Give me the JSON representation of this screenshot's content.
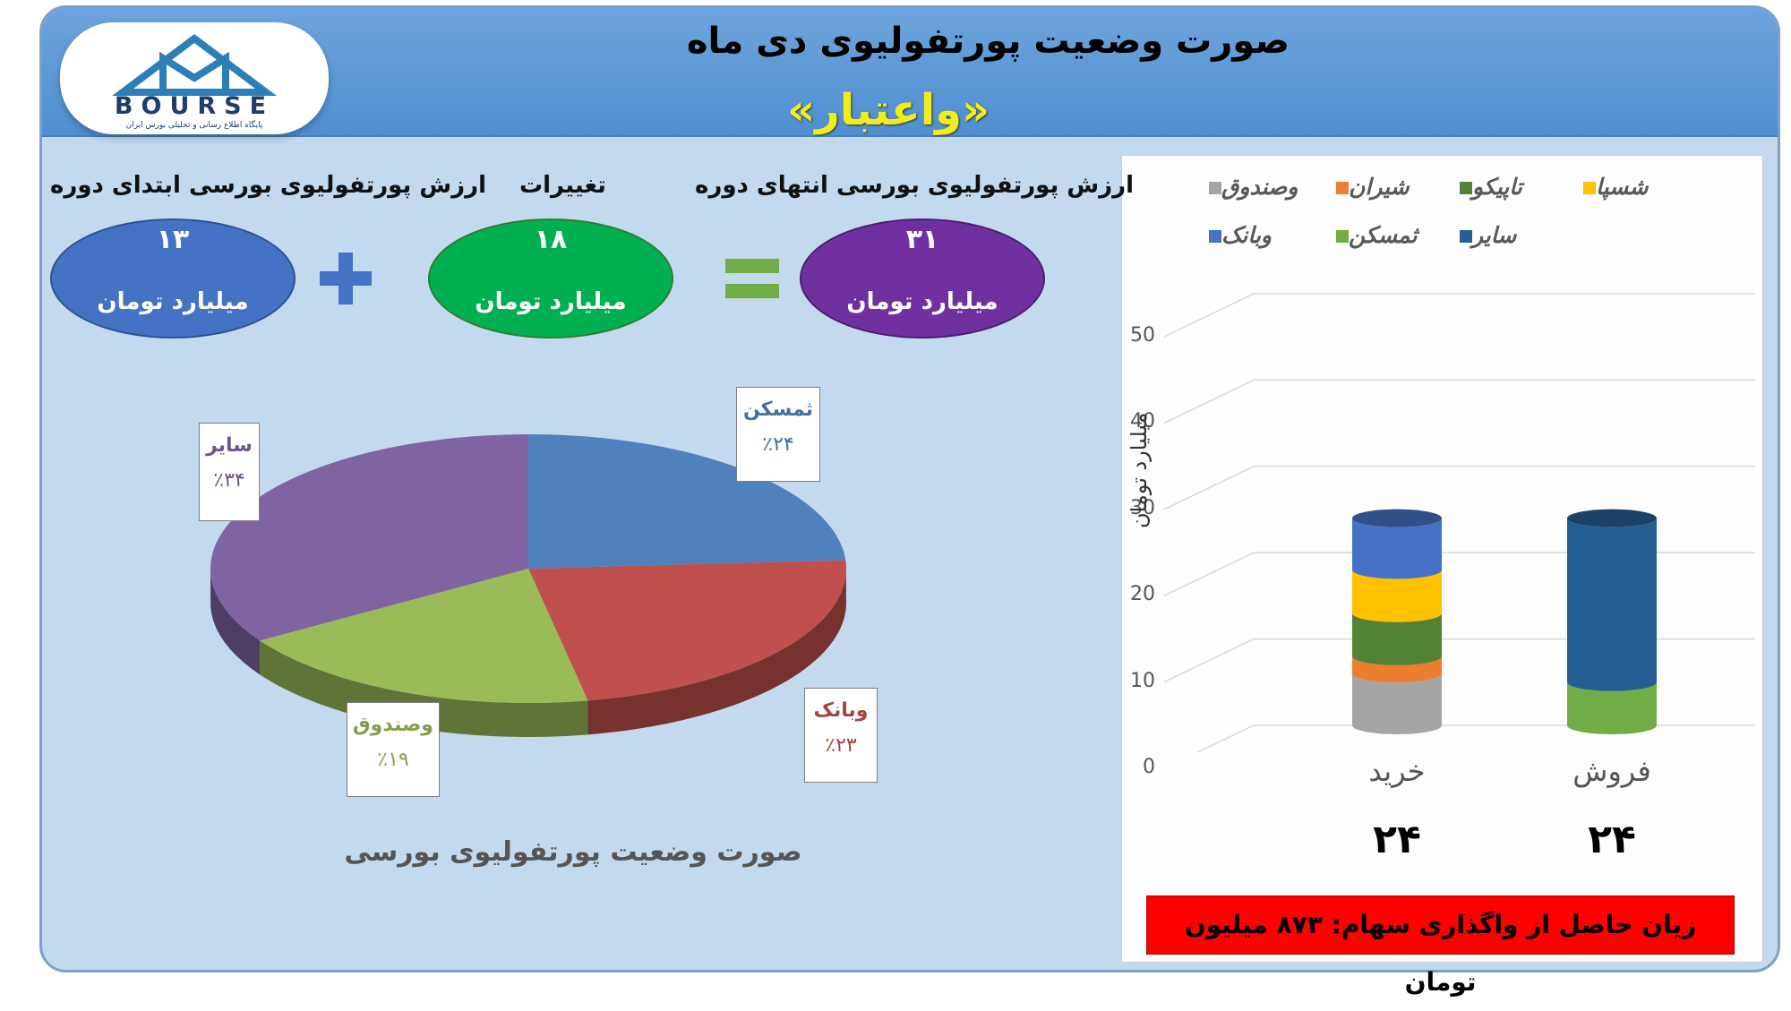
{
  "header": {
    "title": "صورت وضعیت پورتفولیوی دی ماه",
    "subtitle": "«واعتبار»",
    "logo_text": "BOURSE",
    "logo_subtext": "پایگاه اطلاع رسانی و تحلیلی بورس ایران"
  },
  "summary": {
    "start_label": "ارزش پورتفولیوی بورسی ابتدای دوره",
    "start_value": "۱۳",
    "change_label": "تغییرات",
    "change_value": "۱۸",
    "end_label": "ارزش پورتفولیوی بورسی انتهای دوره",
    "end_value": "۳۱",
    "unit": "میلیارد تومان",
    "colors": {
      "start": "#4472c4",
      "change": "#00b050",
      "end": "#7030a0",
      "plus": "#4472c4",
      "equals": "#70ad47"
    }
  },
  "pie_caption": "صورت وضعیت پورتفولیوی بورسی",
  "bar_chart": {
    "y_label": "میلیارد تومان",
    "categories": [
      {
        "label": "خرید",
        "count": "۲۴"
      },
      {
        "label": "فروش",
        "count": "۲۴"
      }
    ]
  },
  "loss_text": "زیان حاصل از واگذاری سهام: ۸۷۳ میلیون تومان",
  "chart_data": [
    {
      "type": "pie",
      "title": "صورت وضعیت پورتفولیوی بورسی",
      "slices": [
        {
          "label": "ثمسکن",
          "value": 24,
          "pct_label": "٪۲۴",
          "color": "#4f81bd"
        },
        {
          "label": "وبانک",
          "value": 23,
          "pct_label": "٪۲۳",
          "color": "#c0504d"
        },
        {
          "label": "وصندوق",
          "value": 19,
          "pct_label": "٪۱۹",
          "color": "#9bbb59"
        },
        {
          "label": "سایر",
          "value": 34,
          "pct_label": "٪۳۴",
          "color": "#8064a2"
        }
      ]
    },
    {
      "type": "bar",
      "stacked": true,
      "ylabel": "میلیارد تومان",
      "ylim": [
        0,
        50
      ],
      "yticks": [
        0,
        10,
        20,
        30,
        40,
        50
      ],
      "categories": [
        "خرید",
        "فروش"
      ],
      "legend": [
        "شسپا",
        "تاپیکو",
        "شیران",
        "وصندوق",
        "سایر",
        "ثمسکن",
        "وبانک"
      ],
      "legend_position": "top",
      "series": [
        {
          "name": "وصندوق",
          "color": "#a5a5a5",
          "values": [
            6,
            0
          ]
        },
        {
          "name": "شیران",
          "color": "#ed7d31",
          "values": [
            2,
            0
          ]
        },
        {
          "name": "تاپیکو",
          "color": "#548235",
          "values": [
            5,
            0
          ]
        },
        {
          "name": "شسپا",
          "color": "#ffc000",
          "values": [
            5,
            0
          ]
        },
        {
          "name": "وبانک",
          "color": "#4472c4",
          "values": [
            6,
            0
          ]
        },
        {
          "name": "ثمسکن",
          "color": "#70ad47",
          "values": [
            0,
            5
          ]
        },
        {
          "name": "سایر",
          "color": "#255e91",
          "values": [
            0,
            19
          ]
        }
      ]
    }
  ]
}
